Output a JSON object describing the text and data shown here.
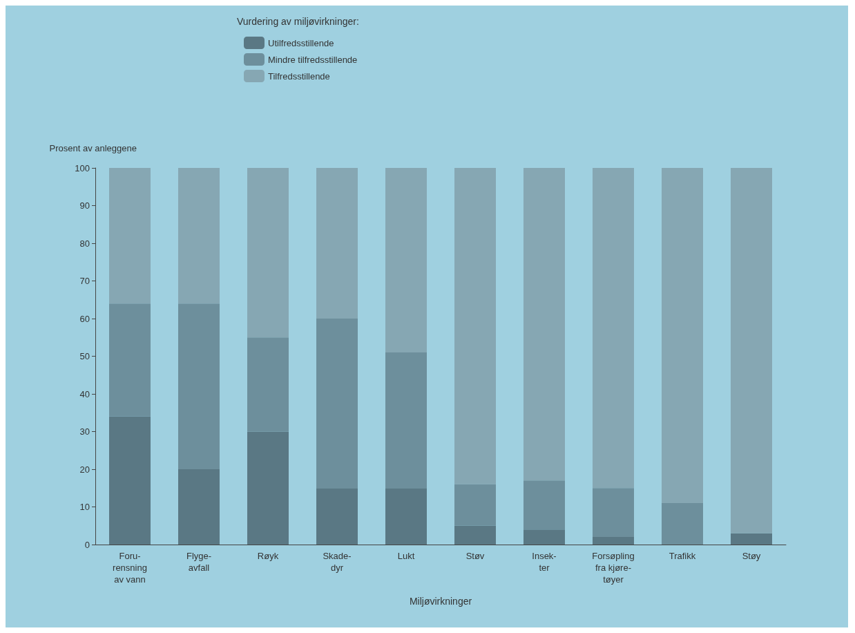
{
  "chart_data": {
    "type": "bar",
    "stacked": true,
    "legend_title": "Vurdering av miljøvirkninger:",
    "ylabel": "Prosent av anleggene",
    "xlabel": "Miljøvirkninger",
    "categories": [
      "Foru-\nrensning\nav vann",
      "Flyge-\navfall",
      "Røyk",
      "Skade-\ndyr",
      "Lukt",
      "Støv",
      "Insek-\nter",
      "Forsøpling\nfra kjøre-\ntøyer",
      "Trafikk",
      "Støy"
    ],
    "series": [
      {
        "name": "Utilfredsstillende",
        "color": "#5a7884",
        "values": [
          34,
          20,
          30,
          15,
          15,
          5,
          4,
          2,
          0,
          3
        ]
      },
      {
        "name": "Mindre tilfredsstillende",
        "color": "#6d8f9c",
        "values": [
          30,
          44,
          25,
          45,
          36,
          11,
          13,
          13,
          11,
          0
        ]
      },
      {
        "name": "Tilfredsstillende",
        "color": "#86a7b3",
        "values": [
          36,
          36,
          45,
          40,
          49,
          84,
          83,
          85,
          89,
          97
        ]
      }
    ],
    "ylim": [
      0,
      100
    ],
    "yticks": [
      0,
      10,
      20,
      30,
      40,
      50,
      60,
      70,
      80,
      90,
      100
    ],
    "grid": false,
    "legend": "top"
  }
}
